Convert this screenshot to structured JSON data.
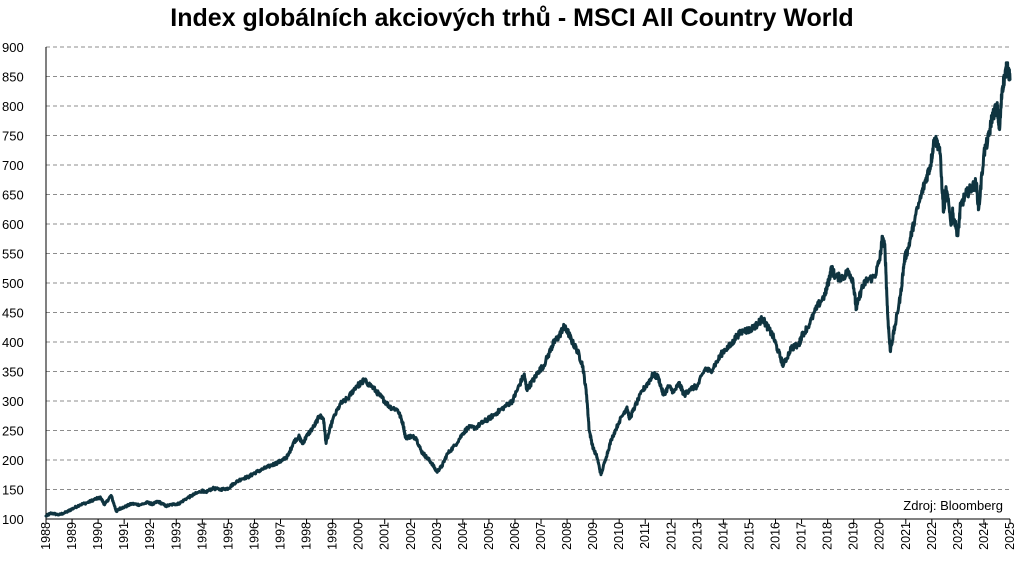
{
  "chart_data": {
    "type": "line",
    "title": "Index globálních akciových trhů - MSCI All Country World",
    "xlabel": "",
    "ylabel": "",
    "source_note": "Zdroj: Bloomberg",
    "ylim": [
      100,
      900
    ],
    "yticks": [
      "100",
      "150",
      "200",
      "250",
      "300",
      "350",
      "400",
      "450",
      "500",
      "550",
      "600",
      "650",
      "700",
      "750",
      "800",
      "850",
      "900"
    ],
    "xlim": [
      1988,
      2025
    ],
    "xticks": [
      "1988",
      "1989",
      "1990",
      "1991",
      "1992",
      "1993",
      "1994",
      "1995",
      "1996",
      "1997",
      "1998",
      "1999",
      "2000",
      "2001",
      "2002",
      "2003",
      "2004",
      "2005",
      "2006",
      "2007",
      "2008",
      "2009",
      "2010",
      "2011",
      "2012",
      "2013",
      "2014",
      "2015",
      "2016",
      "2017",
      "2018",
      "2019",
      "2020",
      "2021",
      "2022",
      "2023",
      "2024",
      "2025"
    ],
    "grid": true,
    "colors": {
      "line": "#0f3440",
      "grid": "#8c8c8c",
      "axis": "#000000"
    },
    "series": [
      {
        "x": [
          1988.0,
          1988.2,
          1988.5,
          1988.8,
          1989.0,
          1989.3,
          1989.6,
          1989.9,
          1990.1,
          1990.25,
          1990.5,
          1990.7,
          1990.85,
          1991.0,
          1991.3,
          1991.6,
          1991.9,
          1992.1,
          1992.3,
          1992.6,
          1992.9,
          1993.1,
          1993.4,
          1993.7,
          1994.0,
          1994.1,
          1994.4,
          1994.7,
          1995.0,
          1995.2,
          1995.5,
          1995.8,
          1996.0,
          1996.3,
          1996.6,
          1996.9,
          1997.1,
          1997.3,
          1997.5,
          1997.7,
          1997.85,
          1998.0,
          1998.3,
          1998.5,
          1998.65,
          1998.75,
          1999.0,
          1999.3,
          1999.6,
          1999.9,
          2000.1,
          2000.2,
          2000.5,
          2000.8,
          2001.0,
          2001.2,
          2001.5,
          2001.7,
          2001.8,
          2002.0,
          2002.2,
          2002.4,
          2002.6,
          2002.8,
          2003.0,
          2003.2,
          2003.4,
          2003.7,
          2004.0,
          2004.2,
          2004.5,
          2004.8,
          2005.0,
          2005.3,
          2005.6,
          2005.9,
          2006.1,
          2006.35,
          2006.45,
          2006.7,
          2006.9,
          2007.1,
          2007.4,
          2007.5,
          2007.7,
          2007.85,
          2008.0,
          2008.2,
          2008.4,
          2008.6,
          2008.75,
          2008.85,
          2009.0,
          2009.15,
          2009.3,
          2009.5,
          2009.7,
          2010.0,
          2010.3,
          2010.4,
          2010.6,
          2010.9,
          2011.1,
          2011.3,
          2011.5,
          2011.7,
          2011.9,
          2012.1,
          2012.3,
          2012.5,
          2012.7,
          2013.0,
          2013.3,
          2013.5,
          2013.8,
          2014.0,
          2014.3,
          2014.5,
          2014.8,
          2015.0,
          2015.3,
          2015.5,
          2015.7,
          2015.9,
          2016.1,
          2016.3,
          2016.6,
          2016.9,
          2017.0,
          2017.3,
          2017.6,
          2017.9,
          2018.05,
          2018.15,
          2018.3,
          2018.6,
          2018.8,
          2018.97,
          2019.1,
          2019.3,
          2019.5,
          2019.8,
          2020.0,
          2020.1,
          2020.2,
          2020.3,
          2020.4,
          2020.6,
          2020.8,
          2020.95,
          2021.1,
          2021.3,
          2021.6,
          2021.8,
          2021.95,
          2022.1,
          2022.3,
          2022.45,
          2022.55,
          2022.75,
          2022.8,
          2023.0,
          2023.1,
          2023.3,
          2023.5,
          2023.7,
          2023.8,
          2024.0,
          2024.2,
          2024.3,
          2024.5,
          2024.6,
          2024.7,
          2024.8,
          2024.9,
          2025.0
        ],
        "values": [
          105,
          110,
          107,
          112,
          117,
          124,
          128,
          134,
          136,
          124,
          140,
          113,
          118,
          120,
          126,
          124,
          128,
          125,
          130,
          122,
          125,
          126,
          135,
          142,
          148,
          145,
          152,
          150,
          152,
          160,
          168,
          172,
          178,
          184,
          190,
          196,
          200,
          208,
          230,
          240,
          228,
          240,
          258,
          275,
          270,
          228,
          268,
          295,
          305,
          325,
          330,
          335,
          325,
          310,
          300,
          290,
          285,
          262,
          238,
          240,
          238,
          215,
          205,
          195,
          180,
          190,
          210,
          225,
          245,
          255,
          255,
          265,
          270,
          280,
          290,
          300,
          320,
          345,
          320,
          335,
          350,
          360,
          390,
          400,
          410,
          425,
          420,
          400,
          385,
          360,
          310,
          250,
          220,
          205,
          175,
          205,
          235,
          265,
          290,
          270,
          290,
          318,
          330,
          345,
          340,
          310,
          325,
          315,
          330,
          310,
          320,
          325,
          355,
          350,
          370,
          385,
          395,
          410,
          420,
          420,
          430,
          440,
          425,
          410,
          385,
          360,
          390,
          395,
          410,
          430,
          460,
          480,
          505,
          525,
          510,
          510,
          520,
          505,
          455,
          490,
          505,
          510,
          540,
          575,
          560,
          450,
          385,
          430,
          480,
          540,
          560,
          600,
          650,
          680,
          700,
          745,
          730,
          620,
          660,
          600,
          620,
          580,
          630,
          650,
          660,
          670,
          625,
          720,
          750,
          780,
          800,
          760,
          830,
          850,
          870,
          845
        ]
      }
    ]
  }
}
